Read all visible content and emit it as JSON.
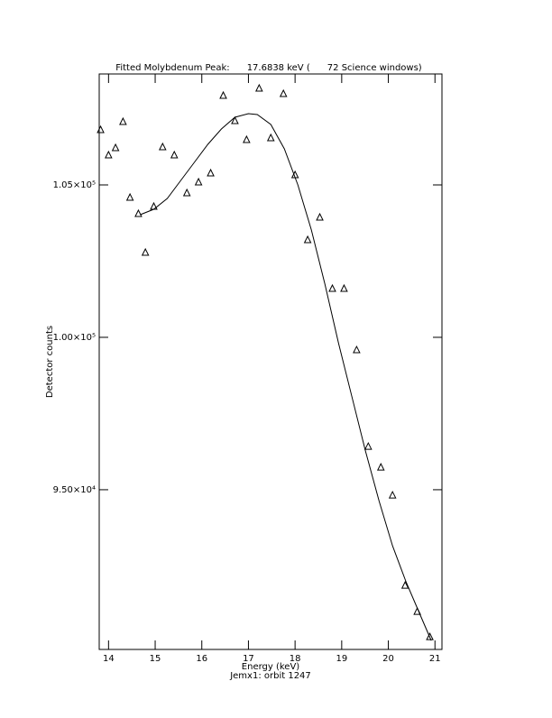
{
  "chart_data": {
    "type": "scatter",
    "title": "Fitted Molybdenum Peak:      17.6838 keV (      72 Science windows)",
    "xlabel": "Energy (keV)",
    "subtitle": "Jemx1: orbit 1247",
    "ylabel": "Detector counts",
    "xlim": [
      13.8,
      21.15
    ],
    "ylim": [
      89760,
      108640
    ],
    "xticks": [
      14,
      15,
      16,
      17,
      18,
      19,
      20,
      21
    ],
    "yticks": [
      {
        "value": 95000,
        "label": "9.50×10⁴"
      },
      {
        "value": 100000,
        "label": "1.00×10⁵"
      },
      {
        "value": 105000,
        "label": "1.05×10⁵"
      }
    ],
    "color": "#000000",
    "points": {
      "x": [
        13.83,
        14.0,
        14.15,
        14.31,
        14.46,
        14.64,
        14.79,
        14.97,
        15.16,
        15.41,
        15.68,
        15.93,
        16.19,
        16.46,
        16.71,
        16.96,
        17.23,
        17.48,
        17.75,
        18.0,
        18.27,
        18.53,
        18.8,
        19.05,
        19.32,
        19.57,
        19.84,
        20.09,
        20.36,
        20.62,
        20.89
      ],
      "y": [
        106806,
        105977,
        106214,
        107072,
        104586,
        104053,
        102780,
        104290,
        106243,
        105977,
        104734,
        105089,
        105385,
        107930,
        107102,
        106480,
        108167,
        106539,
        107990,
        105326,
        103194,
        103934,
        101596,
        101596,
        99583,
        96416,
        95735,
        94818,
        91858,
        91000,
        90170
      ]
    },
    "fit": {
      "x": [
        14.68,
        14.97,
        15.26,
        15.55,
        15.84,
        16.13,
        16.42,
        16.71,
        17.0,
        17.19,
        17.48,
        17.77,
        18.06,
        18.35,
        18.64,
        18.93,
        19.22,
        19.51,
        19.8,
        20.09,
        20.38,
        20.67,
        20.92
      ],
      "y": [
        104023,
        104201,
        104556,
        105148,
        105740,
        106332,
        106835,
        107220,
        107338,
        107309,
        106983,
        106184,
        105000,
        103520,
        101744,
        99820,
        98044,
        96268,
        94640,
        93160,
        91976,
        90940,
        90052
      ]
    }
  }
}
